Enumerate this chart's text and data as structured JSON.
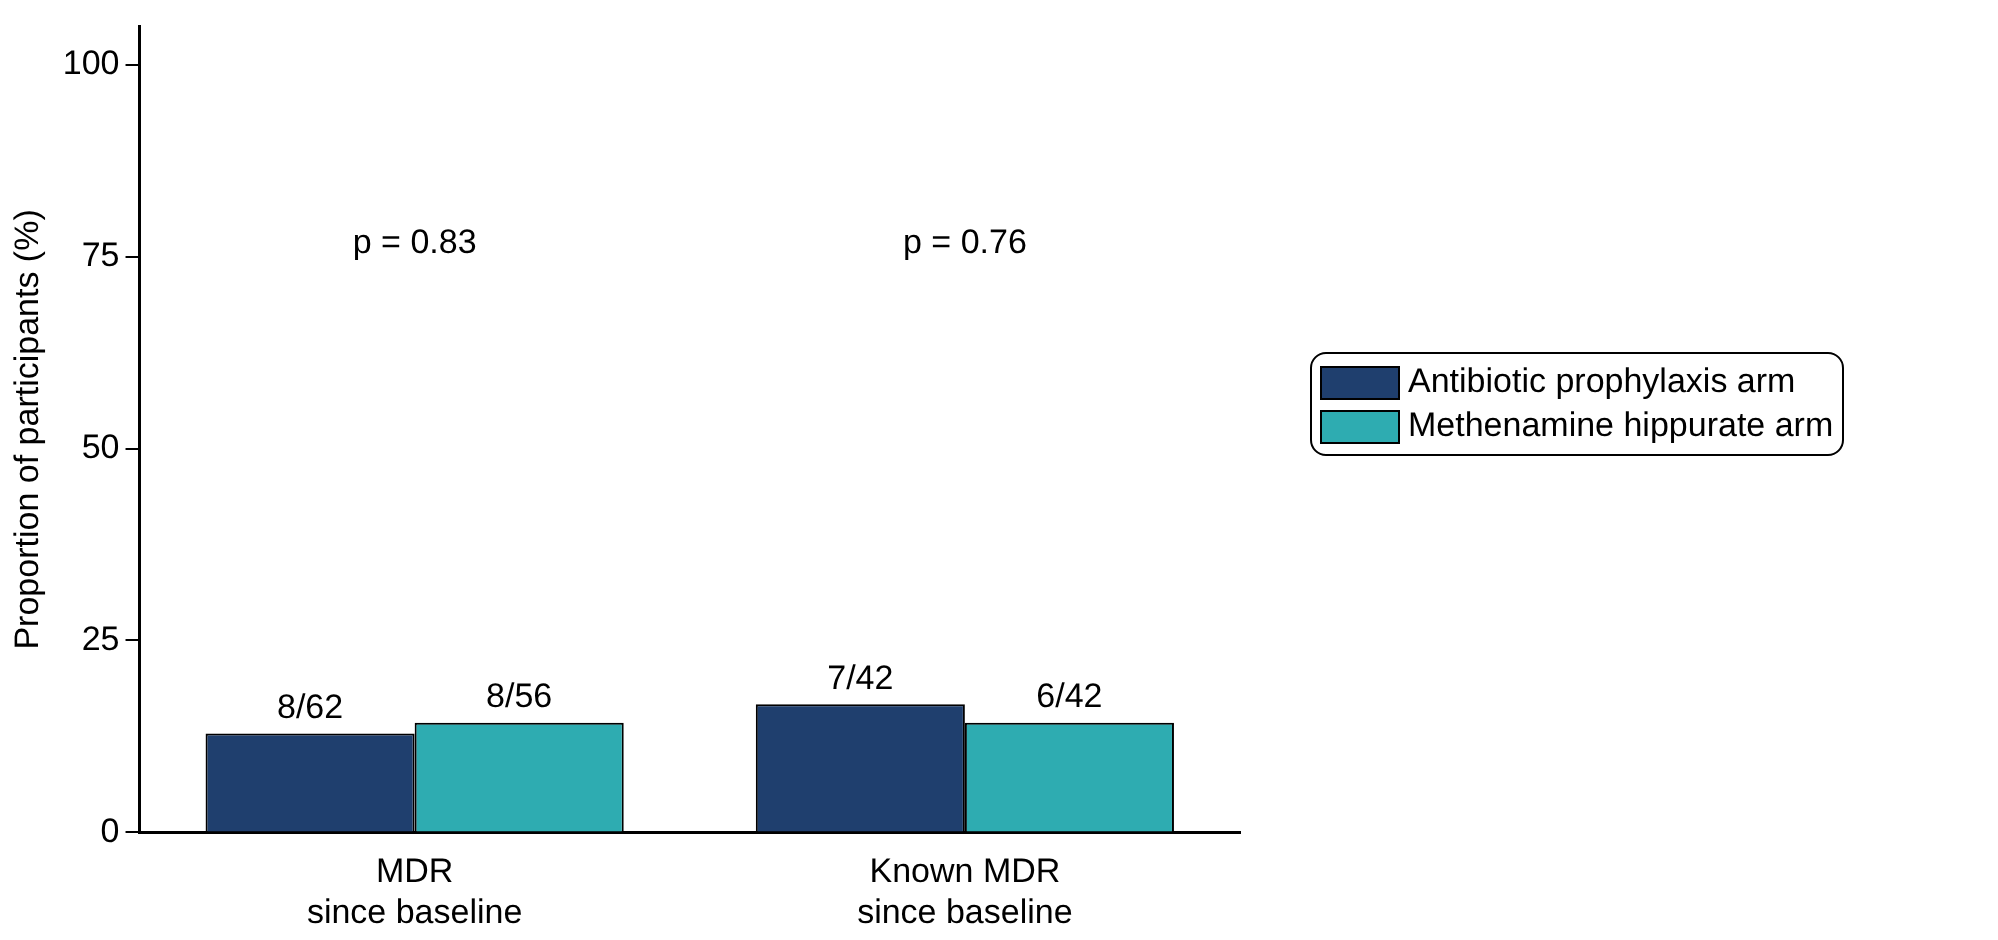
{
  "chart_data": {
    "type": "bar",
    "ylabel": "Proportion of participants (%)",
    "categories": [
      "MDR\nsince baseline",
      "Known MDR\nsince baseline"
    ],
    "series": [
      {
        "name": "Antibiotic prophylaxis arm",
        "color": "#1f3f6e",
        "values": [
          12.9,
          16.7
        ],
        "value_labels": [
          "8/62",
          "7/42"
        ]
      },
      {
        "name": "Methenamine hippurate arm",
        "color": "#2eacb1",
        "values": [
          14.3,
          14.3
        ],
        "value_labels": [
          "8/56",
          "6/42"
        ]
      }
    ],
    "ylim": [
      0,
      105
    ],
    "yticks": [
      0,
      25,
      50,
      75,
      100
    ],
    "grid": false,
    "legend": "right",
    "annotations": [
      "p = 0.83",
      "p = 0.76"
    ]
  }
}
